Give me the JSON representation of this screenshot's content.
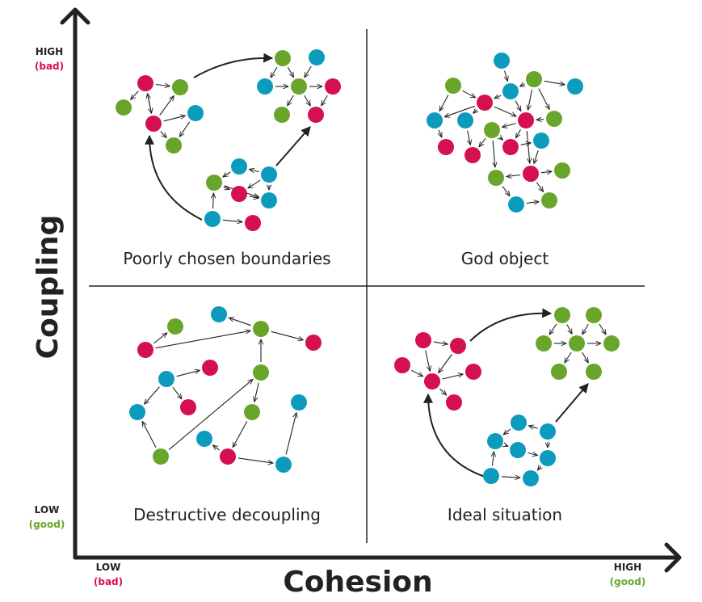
{
  "colors": {
    "red": "#d5104f",
    "green": "#6aa52b",
    "blue": "#0d9bbd",
    "ink": "#222222"
  },
  "axes": {
    "y_title": "Coupling",
    "x_title": "Cohesion",
    "y_high": "HIGH",
    "y_high_note": "(bad)",
    "y_low": "LOW",
    "y_low_note": "(good)",
    "x_low": "LOW",
    "x_low_note": "(bad)",
    "x_high": "HIGH",
    "x_high_note": "(good)"
  },
  "quadrants": [
    {
      "id": "poorly-chosen-boundaries",
      "label": "Poorly chosen boundaries"
    },
    {
      "id": "god-object",
      "label": "God object"
    },
    {
      "id": "destructive-decoupling",
      "label": "Destructive decoupling"
    },
    {
      "id": "ideal-situation",
      "label": "Ideal situation"
    }
  ]
}
